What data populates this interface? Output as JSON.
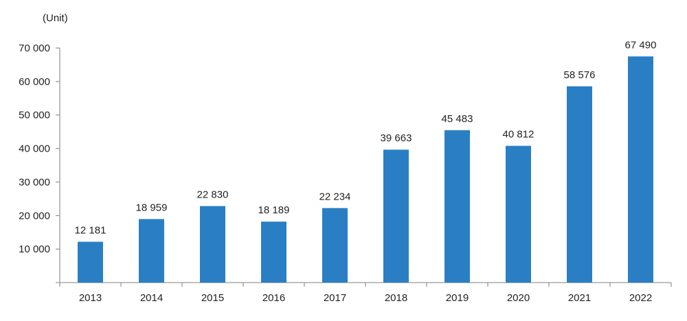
{
  "chart_data": {
    "type": "bar",
    "title": "",
    "unit_label": "(Unit)",
    "xlabel": "",
    "ylabel": "",
    "categories": [
      "2013",
      "2014",
      "2015",
      "2016",
      "2017",
      "2018",
      "2019",
      "2020",
      "2021",
      "2022"
    ],
    "values": [
      12181,
      18959,
      22830,
      18189,
      22234,
      39663,
      45483,
      40812,
      58576,
      67490
    ],
    "data_labels": [
      "12 181",
      "18 959",
      "22 830",
      "18 189",
      "22 234",
      "39 663",
      "45 483",
      "40 812",
      "58 576",
      "67 490"
    ],
    "ylim": [
      0,
      70000
    ],
    "yticks": [
      10000,
      20000,
      30000,
      40000,
      50000,
      60000,
      70000
    ],
    "ytick_labels": [
      "10 000",
      "20 000",
      "30 000",
      "40 000",
      "50 000",
      "60 000",
      "70 000"
    ],
    "grid": false,
    "legend": "none",
    "bar_color": "#2a7fc4",
    "axis_color": "#999999"
  }
}
